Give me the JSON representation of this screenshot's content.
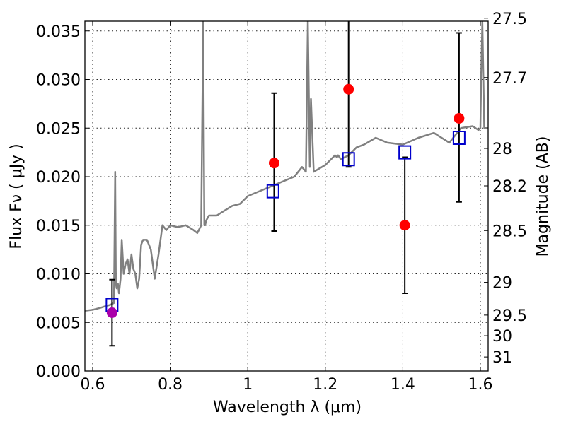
{
  "chart_data": {
    "type": "scatter",
    "xlabel": "Wavelength  λ (μm)",
    "ylabel": "Flux  Fν  ( μJy )",
    "y2label": "Magnitude (AB)",
    "xlim": [
      0.58,
      1.62
    ],
    "ylim": [
      0.0,
      0.036
    ],
    "grid": true,
    "xticks": [
      {
        "value": 0.6,
        "label": "0.6"
      },
      {
        "value": 0.8,
        "label": "0.8"
      },
      {
        "value": 1.0,
        "label": "1"
      },
      {
        "value": 1.2,
        "label": "1.2"
      },
      {
        "value": 1.4,
        "label": "1.4"
      },
      {
        "value": 1.6,
        "label": "1.6"
      }
    ],
    "yticks": [
      {
        "value": 0.0,
        "label": "0.000"
      },
      {
        "value": 0.005,
        "label": "0.005"
      },
      {
        "value": 0.01,
        "label": "0.010"
      },
      {
        "value": 0.015,
        "label": "0.015"
      },
      {
        "value": 0.02,
        "label": "0.020"
      },
      {
        "value": 0.025,
        "label": "0.025"
      },
      {
        "value": 0.03,
        "label": "0.030"
      },
      {
        "value": 0.035,
        "label": "0.035"
      }
    ],
    "y2ticks": [
      {
        "value": 27.5,
        "label": "27.5"
      },
      {
        "value": 27.7,
        "label": "27.7"
      },
      {
        "value": 28.0,
        "label": "28"
      },
      {
        "value": 28.2,
        "label": "28.2"
      },
      {
        "value": 28.5,
        "label": "28.5"
      },
      {
        "value": 29.0,
        "label": "29"
      },
      {
        "value": 29.5,
        "label": "29.5"
      },
      {
        "value": 30.0,
        "label": "30"
      },
      {
        "value": 31.0,
        "label": "31"
      }
    ],
    "series": [
      {
        "kind": "line",
        "color": "#808080",
        "x": [
          0.58,
          0.6,
          0.62,
          0.635,
          0.645,
          0.655,
          0.658,
          0.66,
          0.662,
          0.665,
          0.668,
          0.672,
          0.675,
          0.68,
          0.685,
          0.69,
          0.695,
          0.7,
          0.705,
          0.71,
          0.715,
          0.72,
          0.725,
          0.73,
          0.74,
          0.75,
          0.76,
          0.77,
          0.78,
          0.79,
          0.8,
          0.82,
          0.84,
          0.86,
          0.87,
          0.88,
          0.885,
          0.888,
          0.89,
          0.893,
          0.9,
          0.92,
          0.94,
          0.96,
          0.98,
          1.0,
          1.03,
          1.06,
          1.09,
          1.12,
          1.14,
          1.15,
          1.155,
          1.16,
          1.163,
          1.17,
          1.2,
          1.22,
          1.225,
          1.23,
          1.233,
          1.24,
          1.26,
          1.28,
          1.3,
          1.33,
          1.36,
          1.4,
          1.44,
          1.48,
          1.52,
          1.55,
          1.58,
          1.595,
          1.6,
          1.602,
          1.605,
          1.61,
          1.62
        ],
        "y": [
          0.0062,
          0.0063,
          0.0065,
          0.0067,
          0.0068,
          0.007,
          0.0205,
          0.009,
          0.0085,
          0.009,
          0.008,
          0.0095,
          0.0135,
          0.01,
          0.011,
          0.0115,
          0.01,
          0.012,
          0.0105,
          0.01,
          0.0085,
          0.0095,
          0.013,
          0.0135,
          0.0135,
          0.0125,
          0.0095,
          0.012,
          0.015,
          0.0145,
          0.015,
          0.0148,
          0.015,
          0.0145,
          0.0142,
          0.015,
          0.036,
          0.015,
          0.015,
          0.0155,
          0.016,
          0.016,
          0.0165,
          0.017,
          0.0172,
          0.018,
          0.0185,
          0.019,
          0.0195,
          0.02,
          0.021,
          0.0205,
          0.036,
          0.021,
          0.028,
          0.0205,
          0.0212,
          0.022,
          0.0222,
          0.022,
          0.0222,
          0.0218,
          0.0222,
          0.023,
          0.0233,
          0.024,
          0.0235,
          0.0233,
          0.024,
          0.0245,
          0.0235,
          0.025,
          0.0252,
          0.0248,
          0.025,
          0.03,
          0.036,
          0.025,
          0.025
        ]
      },
      {
        "kind": "scatter",
        "marker": "open-square",
        "color": "#0000cc",
        "x": [
          0.65,
          1.065,
          1.26,
          1.405,
          1.545
        ],
        "y": [
          0.0068,
          0.0185,
          0.0218,
          0.0225,
          0.024
        ]
      },
      {
        "kind": "errorbar",
        "marker": "filled-circle",
        "x": [
          0.65,
          1.068,
          1.26,
          1.405,
          1.545
        ],
        "y": [
          0.006,
          0.0214,
          0.029,
          0.015,
          0.026
        ],
        "yerr_low": [
          0.0034,
          0.007,
          0.008,
          0.007,
          0.0086
        ],
        "yerr_high": [
          0.0034,
          0.0072,
          0.0075,
          0.007,
          0.0088
        ],
        "colors": [
          "#aa00aa",
          "#ff0000",
          "#ff0000",
          "#ff0000",
          "#ff0000"
        ]
      }
    ]
  }
}
